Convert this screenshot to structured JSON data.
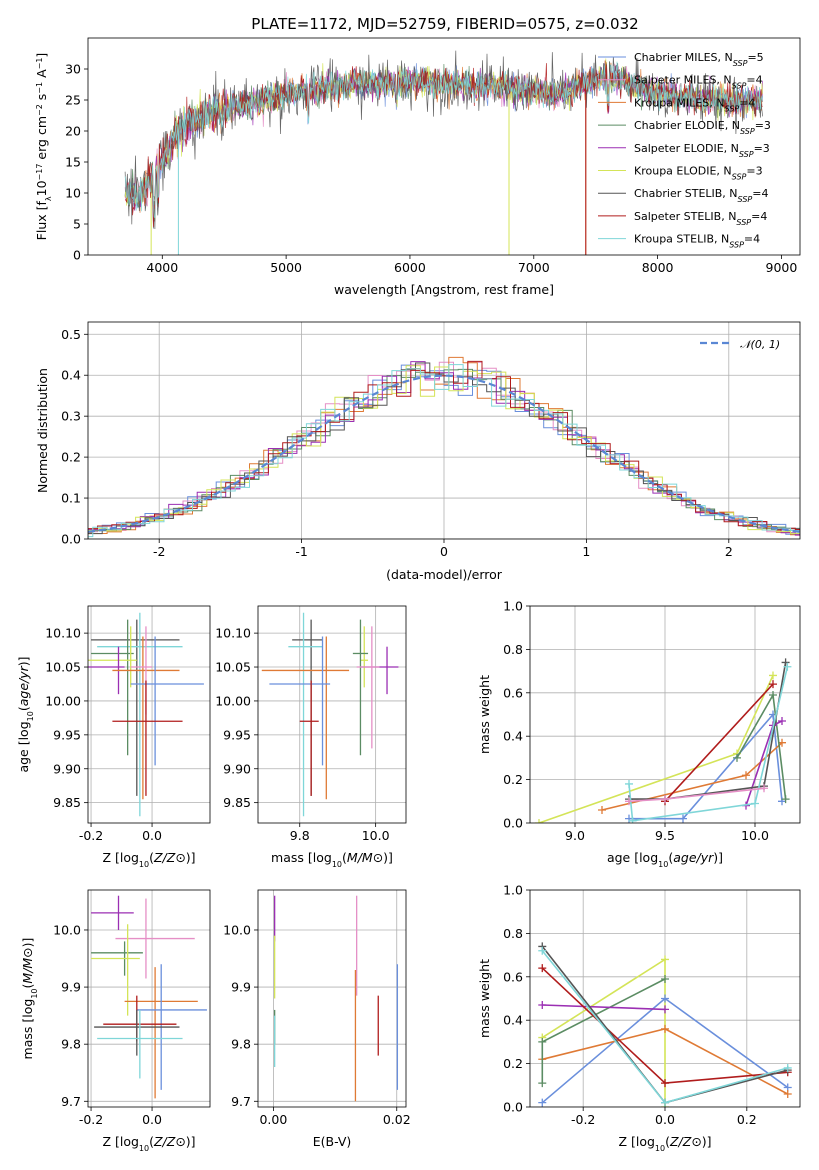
{
  "figure": {
    "title": "PLATE=1172, MJD=52759, FIBERID=0575, z=0.032"
  },
  "colors": {
    "c0": "#6a8fdc",
    "c1": "#e58fc6",
    "c2": "#df7a35",
    "c3": "#5b8c63",
    "c4": "#9b2fb3",
    "c5": "#d4e458",
    "c6": "#555555",
    "c7": "#b01c1c",
    "c8": "#7fd6d8",
    "normal": "#5a87d4"
  },
  "chart_data": [
    {
      "id": "spectrum",
      "type": "line",
      "xlabel": "wavelength [Angstrom, rest frame]",
      "ylabel": "Flux [fλ10⁻¹⁷ erg cm⁻² s⁻¹ A⁻¹]",
      "xlim": [
        3400,
        9150
      ],
      "ylim": [
        0,
        35
      ],
      "xticks": [
        4000,
        5000,
        6000,
        7000,
        8000,
        9000
      ],
      "yticks": [
        0,
        5,
        10,
        15,
        20,
        25,
        30
      ],
      "legend_position": "upper right",
      "series": [
        {
          "name": "Chabrier MILES, N_SSP=5",
          "color_key": "c0"
        },
        {
          "name": "Salpeter MILES, N_SSP=4",
          "color_key": "c1"
        },
        {
          "name": "Kroupa MILES, N_SSP=4",
          "color_key": "c2"
        },
        {
          "name": "Chabrier ELODIE, N_SSP=3",
          "color_key": "c3"
        },
        {
          "name": "Salpeter ELODIE, N_SSP=3",
          "color_key": "c4"
        },
        {
          "name": "Kroupa ELODIE, N_SSP=3",
          "color_key": "c5"
        },
        {
          "name": "Chabrier STELIB, N_SSP=4",
          "color_key": "c6"
        },
        {
          "name": "Salpeter STELIB, N_SSP=4",
          "color_key": "c7"
        },
        {
          "name": "Kroupa STELIB, N_SSP=4",
          "color_key": "c8"
        }
      ],
      "continuum": {
        "x": [
          3700,
          3800,
          3900,
          4000,
          4100,
          4200,
          4300,
          4500,
          4700,
          5000,
          5300,
          5600,
          6000,
          6400,
          6800,
          7200,
          7600,
          8000,
          8400,
          8800
        ],
        "y": [
          10,
          9.5,
          12,
          15,
          19,
          21,
          22,
          23.5,
          24.5,
          26,
          27,
          27.5,
          28,
          27.5,
          27,
          26,
          29,
          26,
          25,
          25
        ]
      }
    },
    {
      "id": "residuals",
      "type": "histogram",
      "xlabel": "(data-model)/error",
      "ylabel": "Normed distribution",
      "xlim": [
        -2.5,
        2.5
      ],
      "ylim": [
        0,
        0.53
      ],
      "xticks": [
        -2,
        -1,
        0,
        1,
        2
      ],
      "yticks": [
        0.0,
        0.1,
        0.2,
        0.3,
        0.4,
        0.5
      ],
      "legend": "𝒩(0, 1)",
      "legend_position": "upper right",
      "grid": true
    },
    {
      "id": "age_vs_Z",
      "type": "errorbar",
      "xlabel": "Z [log10(Z/Z⊙)]",
      "ylabel": "age  [log10(age/yr)]",
      "xlim": [
        -0.21,
        0.19
      ],
      "ylim": [
        9.82,
        10.14
      ],
      "xticks": [
        -0.2,
        0.0
      ],
      "yticks": [
        9.85,
        9.9,
        9.95,
        10.0,
        10.05,
        10.1
      ],
      "grid": true,
      "points": [
        {
          "c": "c6",
          "x": -0.05,
          "xerr": [
            0.15,
            0.14
          ],
          "y": 10.09,
          "yerr": [
            0.23,
            0.03
          ]
        },
        {
          "c": "c8",
          "x": -0.04,
          "xerr": [
            0.14,
            0.14
          ],
          "y": 10.08,
          "yerr": [
            0.25,
            0.05
          ]
        },
        {
          "c": "c3",
          "x": -0.08,
          "xerr": [
            0.12,
            0.02
          ],
          "y": 10.07,
          "yerr": [
            0.15,
            0.05
          ]
        },
        {
          "c": "c5",
          "x": -0.07,
          "xerr": [
            0.14,
            0.02
          ],
          "y": 10.06,
          "yerr": [
            0.04,
            0.05
          ]
        },
        {
          "c": "c4",
          "x": -0.11,
          "xerr": [
            0.1,
            0.02
          ],
          "y": 10.05,
          "yerr": [
            0.04,
            0.03
          ]
        },
        {
          "c": "c2",
          "x": -0.03,
          "xerr": [
            0.1,
            0.12
          ],
          "y": 10.045,
          "yerr": [
            0.19,
            0.05
          ]
        },
        {
          "c": "c1",
          "x": -0.02,
          "xerr": [
            0.05,
            0.02
          ],
          "y": 10.05,
          "yerr": [
            0.07,
            0.06
          ]
        },
        {
          "c": "c0",
          "x": 0.01,
          "xerr": [
            0.08,
            0.16
          ],
          "y": 10.025,
          "yerr": [
            0.12,
            0.07
          ]
        },
        {
          "c": "c7",
          "x": -0.02,
          "xerr": [
            0.11,
            0.12
          ],
          "y": 9.97,
          "yerr": [
            0.11,
            0.06
          ]
        }
      ]
    },
    {
      "id": "age_vs_mass",
      "type": "errorbar",
      "xlabel": "mass [log10(M/M⊙)]",
      "ylabel": "",
      "xlim": [
        9.69,
        10.08
      ],
      "ylim": [
        9.82,
        10.14
      ],
      "xticks": [
        9.8,
        10.0
      ],
      "yticks": [
        9.85,
        9.9,
        9.95,
        10.0,
        10.05,
        10.1
      ],
      "grid": true,
      "points": [
        {
          "c": "c6",
          "x": 9.83,
          "xerr": [
            0.05,
            0.03
          ],
          "y": 10.09,
          "yerr": [
            0.23,
            0.03
          ]
        },
        {
          "c": "c8",
          "x": 9.81,
          "xerr": [
            0.04,
            0.05
          ],
          "y": 10.08,
          "yerr": [
            0.25,
            0.05
          ]
        },
        {
          "c": "c5",
          "x": 9.97,
          "xerr": [
            0.01,
            0.01
          ],
          "y": 10.06,
          "yerr": [
            0.04,
            0.05
          ]
        },
        {
          "c": "c3",
          "x": 9.96,
          "xerr": [
            0.02,
            0.02
          ],
          "y": 10.07,
          "yerr": [
            0.15,
            0.05
          ]
        },
        {
          "c": "c4",
          "x": 10.03,
          "xerr": [
            0.07,
            0.03
          ],
          "y": 10.05,
          "yerr": [
            0.04,
            0.03
          ]
        },
        {
          "c": "c2",
          "x": 9.87,
          "xerr": [
            0.17,
            0.06
          ],
          "y": 10.045,
          "yerr": [
            0.19,
            0.05
          ]
        },
        {
          "c": "c1",
          "x": 9.99,
          "xerr": [
            0.04,
            0.02
          ],
          "y": 10.05,
          "yerr": [
            0.12,
            0.06
          ]
        },
        {
          "c": "c0",
          "x": 9.86,
          "xerr": [
            0.14,
            0.02
          ],
          "y": 10.025,
          "yerr": [
            0.12,
            0.07
          ]
        },
        {
          "c": "c7",
          "x": 9.83,
          "xerr": [
            0.03,
            0.02
          ],
          "y": 9.97,
          "yerr": [
            0.11,
            0.06
          ]
        }
      ]
    },
    {
      "id": "weight_vs_age",
      "type": "line",
      "xlabel": "age  [log10(age/yr)]",
      "ylabel": "mass weight",
      "xlim": [
        8.75,
        10.25
      ],
      "ylim": [
        0,
        1
      ],
      "xticks": [
        9.0,
        9.5,
        10.0
      ],
      "yticks": [
        0.0,
        0.2,
        0.4,
        0.6,
        0.8,
        1.0
      ],
      "grid": true,
      "series": [
        {
          "c": "c5",
          "x": [
            8.8,
            9.9,
            10.1
          ],
          "y": [
            0.0,
            0.32,
            0.68
          ]
        },
        {
          "c": "c0",
          "x": [
            9.3,
            9.6,
            10.1,
            10.15
          ],
          "y": [
            0.02,
            0.02,
            0.5,
            0.1
          ]
        },
        {
          "c": "c2",
          "x": [
            9.15,
            9.95,
            10.15
          ],
          "y": [
            0.06,
            0.22,
            0.37
          ]
        },
        {
          "c": "c3",
          "x": [
            9.9,
            10.1,
            10.17
          ],
          "y": [
            0.3,
            0.59,
            0.11
          ]
        },
        {
          "c": "c4",
          "x": [
            9.95,
            10.1,
            10.15
          ],
          "y": [
            0.08,
            0.45,
            0.47
          ]
        },
        {
          "c": "c7",
          "x": [
            9.5,
            10.1
          ],
          "y": [
            0.1,
            0.64
          ]
        },
        {
          "c": "c6",
          "x": [
            9.3,
            9.5,
            10.05,
            10.17
          ],
          "y": [
            0.11,
            0.11,
            0.17,
            0.74
          ]
        },
        {
          "c": "c8",
          "x": [
            9.3,
            9.32,
            10.0,
            10.18
          ],
          "y": [
            0.18,
            0.01,
            0.09,
            0.72
          ]
        },
        {
          "c": "c1",
          "x": [
            9.3,
            9.5,
            10.05
          ],
          "y": [
            0.1,
            0.11,
            0.16
          ]
        }
      ]
    },
    {
      "id": "mass_vs_Z",
      "type": "errorbar",
      "xlabel": "Z [log10(Z/Z⊙)]",
      "ylabel": "mass [log10(M/M⊙)]",
      "xlim": [
        -0.21,
        0.19
      ],
      "ylim": [
        9.69,
        10.07
      ],
      "xticks": [
        -0.2,
        0.0
      ],
      "yticks": [
        9.7,
        9.8,
        9.9,
        10.0
      ],
      "grid": true,
      "points": [
        {
          "c": "c4",
          "x": -0.11,
          "xerr": [
            0.09,
            0.05
          ],
          "y": 10.03,
          "yerr": [
            0.03,
            0.03
          ]
        },
        {
          "c": "c1",
          "x": -0.02,
          "xerr": [
            0.1,
            0.16
          ],
          "y": 9.985,
          "yerr": [
            0.07,
            0.07
          ]
        },
        {
          "c": "c3",
          "x": -0.09,
          "xerr": [
            0.11,
            0.06
          ],
          "y": 9.96,
          "yerr": [
            0.04,
            0.02
          ]
        },
        {
          "c": "c5",
          "x": -0.08,
          "xerr": [
            0.12,
            0.04
          ],
          "y": 9.95,
          "yerr": [
            0.1,
            0.06
          ]
        },
        {
          "c": "c2",
          "x": 0.01,
          "xerr": [
            0.1,
            0.14
          ],
          "y": 9.875,
          "yerr": [
            0.17,
            0.06
          ]
        },
        {
          "c": "c0",
          "x": 0.03,
          "xerr": [
            0.08,
            0.15
          ],
          "y": 9.86,
          "yerr": [
            0.14,
            0.08
          ]
        },
        {
          "c": "c7",
          "x": -0.05,
          "xerr": [
            0.11,
            0.13
          ],
          "y": 9.835,
          "yerr": [
            0.03,
            0.05
          ]
        },
        {
          "c": "c6",
          "x": -0.05,
          "xerr": [
            0.14,
            0.14
          ],
          "y": 9.83,
          "yerr": [
            0.05,
            0.03
          ]
        },
        {
          "c": "c8",
          "x": -0.04,
          "xerr": [
            0.14,
            0.14
          ],
          "y": 9.81,
          "yerr": [
            0.07,
            0.05
          ]
        }
      ]
    },
    {
      "id": "mass_vs_EBV",
      "type": "errorbar",
      "xlabel": "E(B-V)",
      "ylabel": "",
      "xlim": [
        -0.0025,
        0.0215
      ],
      "ylim": [
        9.69,
        10.07
      ],
      "xticks": [
        0.0,
        0.02
      ],
      "yticks": [
        9.7,
        9.8,
        9.9,
        10.0
      ],
      "grid": true,
      "points": [
        {
          "c": "c4",
          "x": 0.0002,
          "xerr": [
            0,
            0
          ],
          "y": 10.03,
          "yerr": [
            0.05,
            0.03
          ]
        },
        {
          "c": "c5",
          "x": 0.0002,
          "xerr": [
            0,
            0
          ],
          "y": 9.94,
          "yerr": [
            0.06,
            0.05
          ]
        },
        {
          "c": "c3",
          "x": 0.0002,
          "xerr": [
            0,
            0
          ],
          "y": 9.84,
          "yerr": [
            0.04,
            0.02
          ]
        },
        {
          "c": "c8",
          "x": 0.0002,
          "xerr": [
            0,
            0
          ],
          "y": 9.8,
          "yerr": [
            0.04,
            0.05
          ]
        },
        {
          "c": "c1",
          "x": 0.0135,
          "xerr": [
            0,
            0
          ],
          "y": 9.985,
          "yerr": [
            0.1,
            0.075
          ]
        },
        {
          "c": "c2",
          "x": 0.0133,
          "xerr": [
            0,
            0
          ],
          "y": 9.85,
          "yerr": [
            0.15,
            0.08
          ]
        },
        {
          "c": "c7",
          "x": 0.017,
          "xerr": [
            0,
            0
          ],
          "y": 9.83,
          "yerr": [
            0.05,
            0.055
          ]
        },
        {
          "c": "c0",
          "x": 0.0201,
          "xerr": [
            0,
            0
          ],
          "y": 9.86,
          "yerr": [
            0.14,
            0.08
          ]
        }
      ]
    },
    {
      "id": "weight_vs_Z",
      "type": "line",
      "xlabel": "Z [log10(Z/Z⊙)]",
      "ylabel": "mass weight",
      "xlim": [
        -0.33,
        0.33
      ],
      "ylim": [
        0,
        1
      ],
      "xticks": [
        -0.2,
        0.0,
        0.2
      ],
      "yticks": [
        0.0,
        0.2,
        0.4,
        0.6,
        0.8,
        1.0
      ],
      "grid": true,
      "series": [
        {
          "c": "c5",
          "x": [
            -0.3,
            0.0,
            0.0
          ],
          "y": [
            0.32,
            0.68,
            0.0
          ]
        },
        {
          "c": "c0",
          "x": [
            -0.3,
            0.0,
            0.3
          ],
          "y": [
            0.02,
            0.5,
            0.09
          ]
        },
        {
          "c": "c2",
          "x": [
            -0.3,
            0.0,
            0.3
          ],
          "y": [
            0.22,
            0.36,
            0.06
          ]
        },
        {
          "c": "c3",
          "x": [
            -0.3,
            -0.3,
            0.0
          ],
          "y": [
            0.11,
            0.3,
            0.59
          ]
        },
        {
          "c": "c4",
          "x": [
            -0.3,
            0.0
          ],
          "y": [
            0.47,
            0.45
          ]
        },
        {
          "c": "c7",
          "x": [
            -0.3,
            0.0,
            0.3
          ],
          "y": [
            0.64,
            0.11,
            0.16
          ]
        },
        {
          "c": "c6",
          "x": [
            -0.3,
            0.0,
            0.3
          ],
          "y": [
            0.74,
            0.02,
            0.17
          ]
        },
        {
          "c": "c8",
          "x": [
            -0.3,
            0.0,
            0.3
          ],
          "y": [
            0.72,
            0.02,
            0.18
          ]
        }
      ]
    }
  ]
}
